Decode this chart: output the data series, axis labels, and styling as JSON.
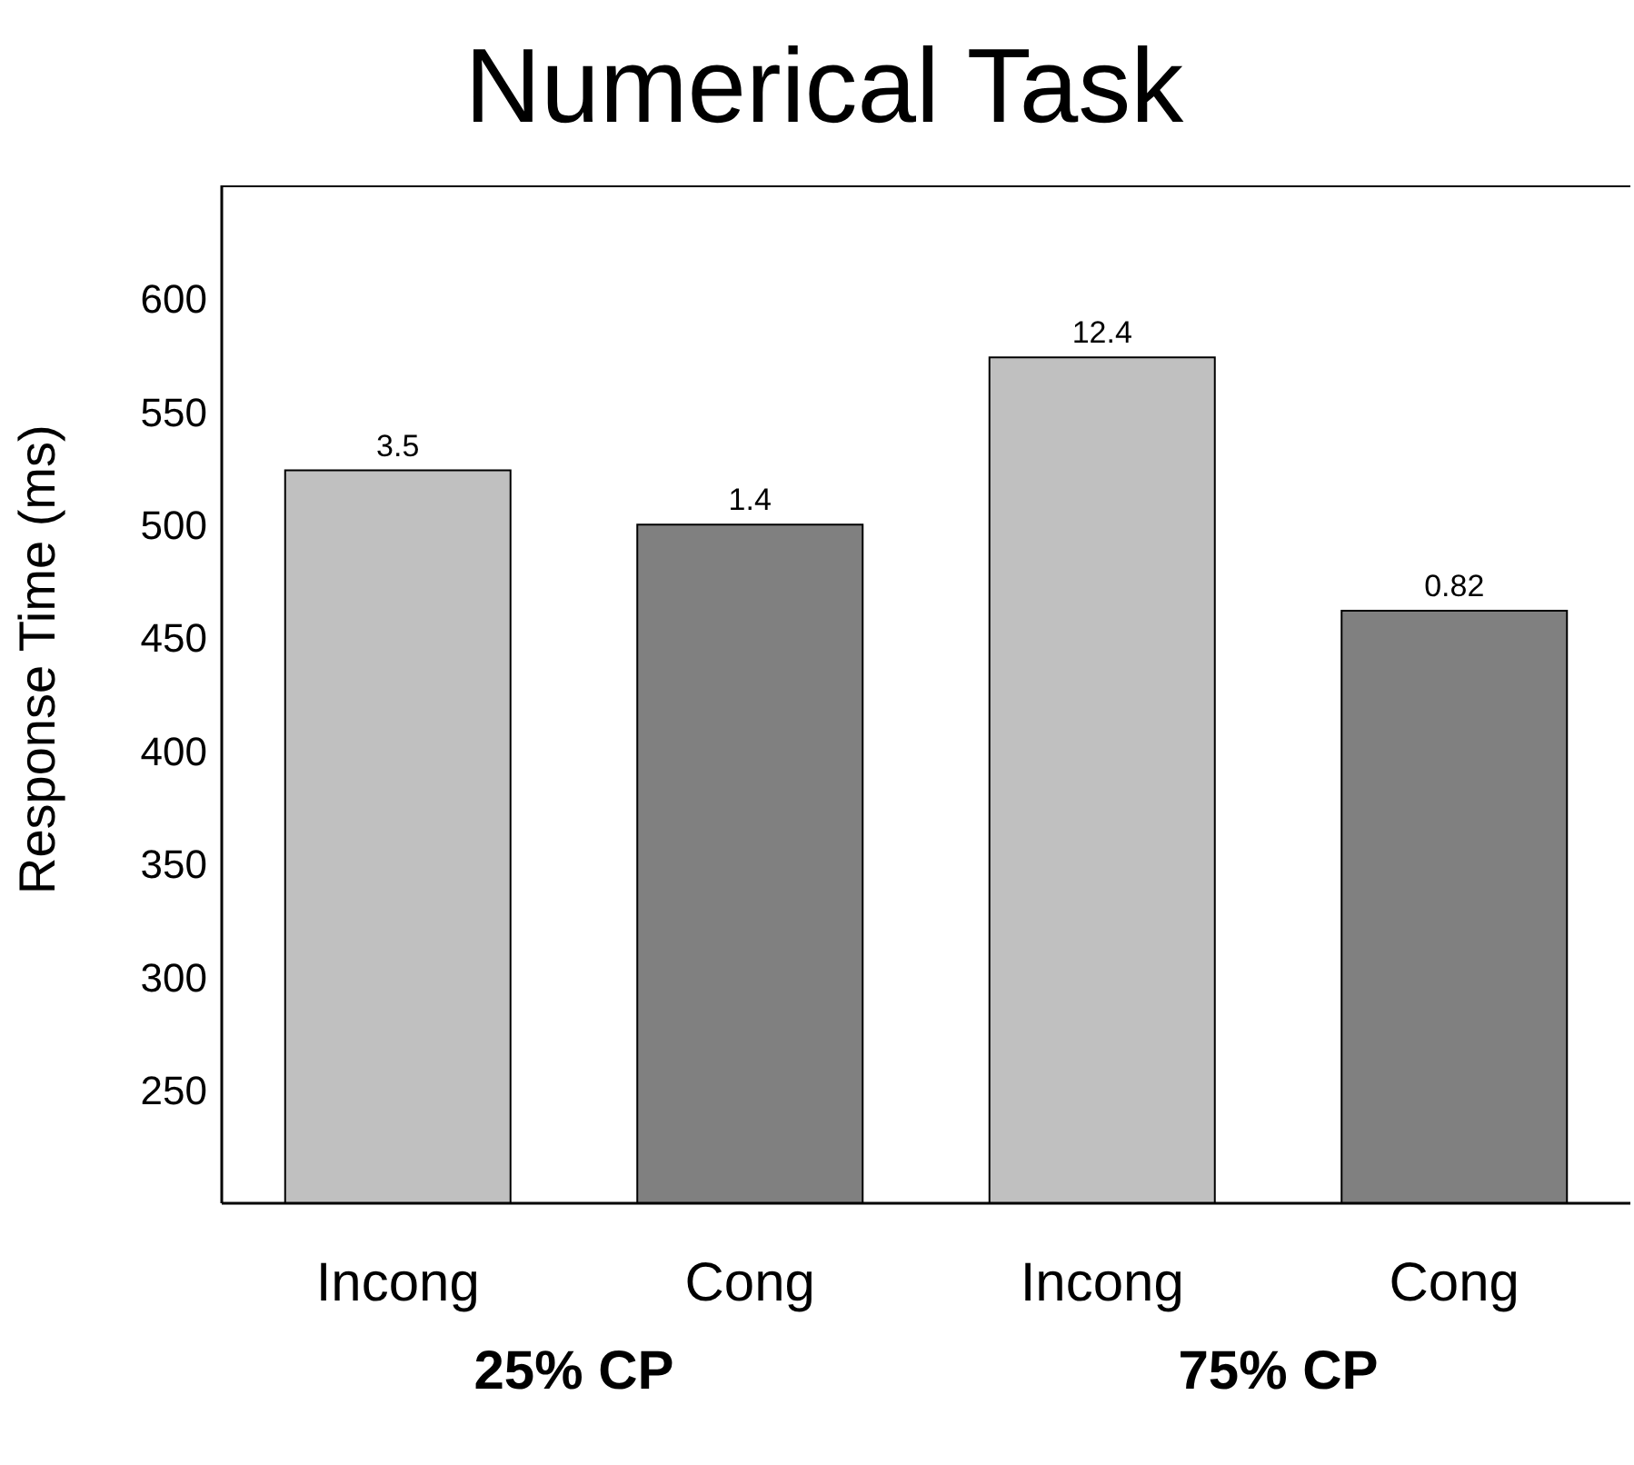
{
  "chart_data": {
    "type": "bar",
    "title": "Numerical Task",
    "ylabel": "Response Time (ms)",
    "categories": [
      "Incong",
      "Cong",
      "Incong",
      "Cong"
    ],
    "values": [
      524,
      500,
      574,
      462
    ],
    "colors": [
      "#c0c0c0",
      "#808080",
      "#c0c0c0",
      "#808080"
    ],
    "ylim": [
      200,
      650
    ],
    "yticks": [
      250,
      300,
      350,
      400,
      450,
      500,
      550,
      600
    ],
    "grid": false,
    "legend": false,
    "annotations": [
      "25% CP",
      "75% CP",
      "3.5",
      "1.4",
      "12.4",
      "0.82"
    ]
  }
}
